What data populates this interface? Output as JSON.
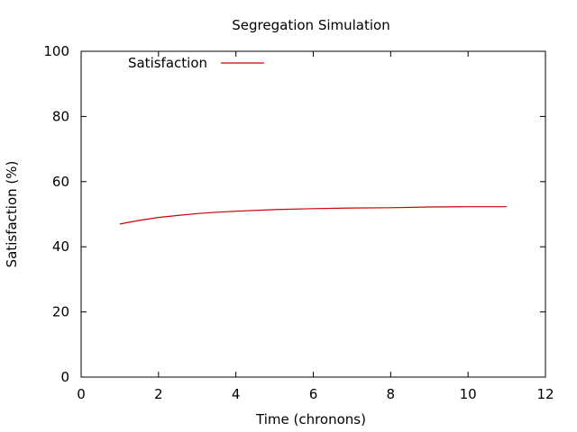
{
  "chart_data": {
    "type": "line",
    "title": "Segregation Simulation",
    "xlabel": "Time (chronons)",
    "ylabel": "Satisfaction (%)",
    "xlim": [
      0,
      12
    ],
    "ylim": [
      0,
      100
    ],
    "xticks": [
      0,
      2,
      4,
      6,
      8,
      10,
      12
    ],
    "yticks": [
      0,
      20,
      40,
      60,
      80,
      100
    ],
    "grid": false,
    "legend_position": "top-left",
    "series": [
      {
        "name": "Satisfaction",
        "color": "#cc0000",
        "x": [
          1,
          1.5,
          2,
          2.5,
          3,
          3.5,
          4,
          5,
          6,
          7,
          8,
          9,
          10,
          11
        ],
        "y": [
          47.0,
          48.1,
          49.0,
          49.6,
          50.2,
          50.6,
          50.9,
          51.4,
          51.7,
          51.9,
          52.0,
          52.2,
          52.3,
          52.3
        ]
      }
    ]
  }
}
